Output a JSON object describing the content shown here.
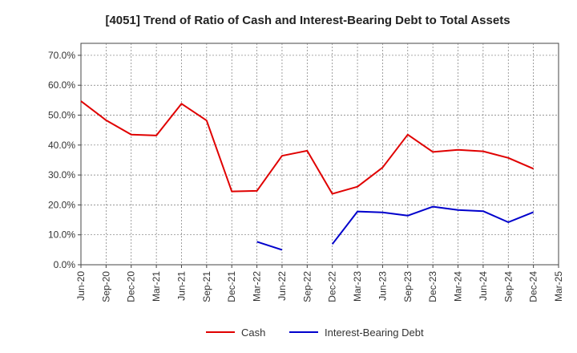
{
  "chart_data": {
    "type": "line",
    "title": "[4051]  Trend of Ratio of Cash and Interest-Bearing Debt to Total Assets",
    "xlabel": "",
    "ylabel": "",
    "ylim": [
      0,
      0.74
    ],
    "yticks": [
      0,
      0.1,
      0.2,
      0.3,
      0.4,
      0.5,
      0.6,
      0.7
    ],
    "ytick_labels": [
      "0.0%",
      "10.0%",
      "20.0%",
      "30.0%",
      "40.0%",
      "50.0%",
      "60.0%",
      "70.0%"
    ],
    "categories": [
      "Jun-20",
      "Sep-20",
      "Dec-20",
      "Mar-21",
      "Jun-21",
      "Sep-21",
      "Dec-21",
      "Mar-22",
      "Jun-22",
      "Sep-22",
      "Dec-22",
      "Mar-23",
      "Jun-23",
      "Sep-23",
      "Dec-23",
      "Mar-24",
      "Jun-24",
      "Sep-24",
      "Dec-24",
      "Mar-25"
    ],
    "series": [
      {
        "name": "Cash",
        "color": "#e00000",
        "values": [
          0.547,
          0.483,
          0.435,
          0.432,
          0.538,
          0.482,
          0.245,
          0.247,
          0.364,
          0.381,
          0.237,
          0.261,
          0.325,
          0.435,
          0.377,
          0.384,
          0.379,
          0.357,
          0.321,
          null
        ]
      },
      {
        "name": "Interest-Bearing Debt",
        "color": "#0000cc",
        "values": [
          null,
          null,
          null,
          null,
          null,
          null,
          null,
          0.077,
          0.05,
          null,
          0.069,
          0.178,
          0.175,
          0.164,
          0.194,
          0.183,
          0.179,
          0.142,
          0.176,
          null
        ]
      }
    ],
    "grid": true,
    "legend": "bottom"
  }
}
